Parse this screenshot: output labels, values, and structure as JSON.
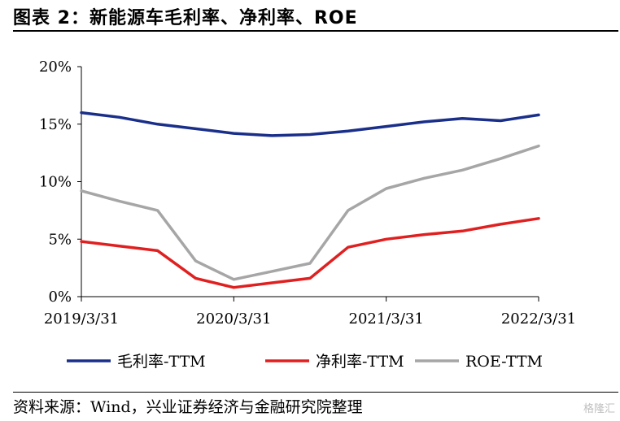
{
  "header": {
    "title": "图表 2：新能源车毛利率、净利率、ROE"
  },
  "footer": {
    "source": "资料来源：Wind，兴业证券经济与金融研究院整理",
    "watermark": "格隆汇"
  },
  "chart_data": {
    "type": "line",
    "x": [
      "2019/3/31",
      "2019/6/30",
      "2019/9/30",
      "2019/12/31",
      "2020/3/31",
      "2020/6/30",
      "2020/9/30",
      "2020/12/31",
      "2021/3/31",
      "2021/6/30",
      "2021/9/30",
      "2021/12/31",
      "2022/3/31"
    ],
    "x_tick_labels": [
      "2019/3/31",
      "2020/3/31",
      "2021/3/31",
      "2022/3/31"
    ],
    "y_tick_labels": [
      "0%",
      "5%",
      "10%",
      "15%",
      "20%"
    ],
    "ylim": [
      0,
      20
    ],
    "grid": false,
    "legend_position": "bottom",
    "series": [
      {
        "name": "毛利率-TTM",
        "color": "#1a2f8a",
        "values": [
          16.0,
          15.6,
          15.0,
          14.6,
          14.2,
          14.0,
          14.1,
          14.4,
          14.8,
          15.2,
          15.5,
          15.3,
          15.8
        ]
      },
      {
        "name": "净利率-TTM",
        "color": "#e02020",
        "values": [
          4.8,
          4.4,
          4.0,
          1.6,
          0.8,
          1.2,
          1.6,
          4.3,
          5.0,
          5.4,
          5.7,
          6.3,
          6.8
        ]
      },
      {
        "name": "ROE-TTM",
        "color": "#a6a6a6",
        "values": [
          9.2,
          8.3,
          7.5,
          3.1,
          1.5,
          2.2,
          2.9,
          7.5,
          9.4,
          10.3,
          11.0,
          12.0,
          13.1
        ]
      }
    ]
  }
}
